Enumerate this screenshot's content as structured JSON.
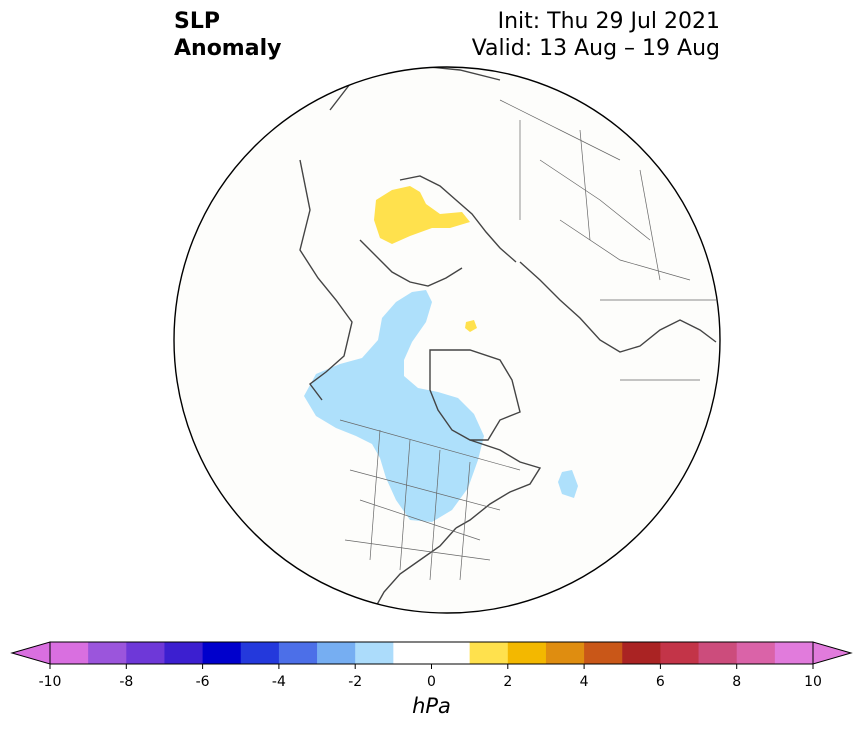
{
  "header": {
    "title_line1": "SLP",
    "title_line2": "Anomaly",
    "init": "Init: Thu 29 Jul 2021",
    "valid": "Valid: 13 Aug – 19 Aug"
  },
  "map": {
    "projection": "north-polar-stereographic",
    "field": "sea level pressure anomaly",
    "anomaly_regions": [
      {
        "region": "Scandinavia / Baltic",
        "level_hPa": "1 to 2",
        "color": "#ffe14d"
      },
      {
        "region": "Svalbard area",
        "level_hPa": "1 to 2",
        "color": "#ffe14d"
      },
      {
        "region": "Alaska / Beaufort Sea / Canada",
        "level_hPa": "-2 to -1",
        "color": "#aee0fb"
      },
      {
        "region": "Greenland Sea / North Atlantic",
        "level_hPa": "-2 to -1",
        "color": "#aee0fb"
      }
    ]
  },
  "colorbar": {
    "ticks": [
      "-10",
      "-8",
      "-6",
      "-4",
      "-2",
      "0",
      "2",
      "4",
      "6",
      "8",
      "10"
    ],
    "unit_label": "hPa",
    "colors": [
      "#d96fe0",
      "#9b55dc",
      "#6e38d8",
      "#3c1fd0",
      "#0000cc",
      "#2439dc",
      "#4c6fe8",
      "#76aef2",
      "#acdcfb",
      "#ffffff",
      "#ffffff",
      "#ffe14d",
      "#f3b800",
      "#df8d10",
      "#c95718",
      "#aa2323",
      "#c33448",
      "#cc4c7c",
      "#da63a8",
      "#e17bdc"
    ]
  }
}
